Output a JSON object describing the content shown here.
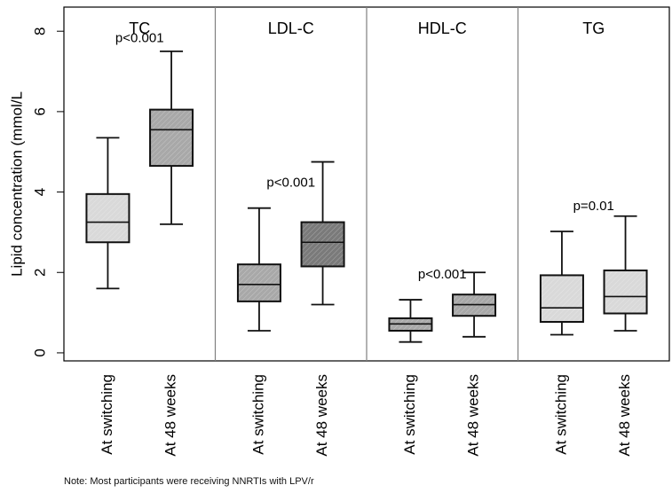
{
  "chart_data": {
    "type": "box",
    "ylabel": "Lipid concentration (mmol/L",
    "ylim": [
      -0.2,
      8.6
    ],
    "yticks": [
      "0",
      "2",
      "4",
      "6",
      "8"
    ],
    "ytick_values": [
      0,
      2,
      4,
      6,
      8
    ],
    "grid": false,
    "colors": {
      "light_box": "#d9d9d9",
      "medium_box": "#a8a8a8",
      "dark_box": "#7a7a7a",
      "panel_line": "#808080",
      "axis": "#000000"
    },
    "panels": [
      {
        "name": "TC",
        "pvalue": "p<0.001",
        "boxes": [
          {
            "category": "At switching",
            "whisker_low": 1.6,
            "q1": 2.75,
            "median": 3.25,
            "q3": 3.95,
            "whisker_high": 5.35,
            "fill": "light_box"
          },
          {
            "category": "At 48 weeks",
            "whisker_low": 3.2,
            "q1": 4.65,
            "median": 5.55,
            "q3": 6.05,
            "whisker_high": 7.5,
            "fill": "medium_box"
          }
        ]
      },
      {
        "name": "LDL-C",
        "pvalue": "p<0.001",
        "boxes": [
          {
            "category": "At switching",
            "whisker_low": 0.55,
            "q1": 1.28,
            "median": 1.7,
            "q3": 2.2,
            "whisker_high": 3.6,
            "fill": "medium_box"
          },
          {
            "category": "At 48 weeks",
            "whisker_low": 1.2,
            "q1": 2.15,
            "median": 2.75,
            "q3": 3.25,
            "whisker_high": 4.75,
            "fill": "dark_box"
          }
        ]
      },
      {
        "name": "HDL-C",
        "pvalue": "p<0.001",
        "boxes": [
          {
            "category": "At switching",
            "whisker_low": 0.27,
            "q1": 0.55,
            "median": 0.72,
            "q3": 0.86,
            "whisker_high": 1.32,
            "fill": "medium_box"
          },
          {
            "category": "At 48 weeks",
            "whisker_low": 0.4,
            "q1": 0.92,
            "median": 1.2,
            "q3": 1.45,
            "whisker_high": 2.0,
            "fill": "medium_box"
          }
        ]
      },
      {
        "name": "TG",
        "pvalue": "p=0.01",
        "boxes": [
          {
            "category": "At switching",
            "whisker_low": 0.45,
            "q1": 0.77,
            "median": 1.12,
            "q3": 1.93,
            "whisker_high": 3.02,
            "fill": "light_box"
          },
          {
            "category": "At 48 weeks",
            "whisker_low": 0.55,
            "q1": 0.98,
            "median": 1.4,
            "q3": 2.05,
            "whisker_high": 3.4,
            "fill": "light_box"
          }
        ]
      }
    ]
  },
  "note": "Note: Most participants were receiving NNRTIs with LPV/r"
}
